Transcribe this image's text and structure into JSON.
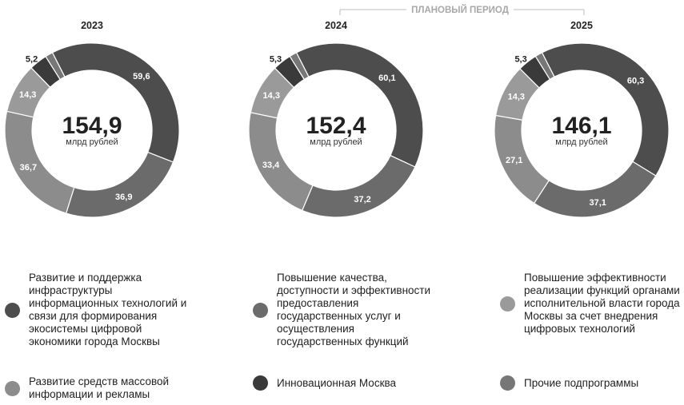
{
  "planned_period_label": "ПЛАНОВЫЙ ПЕРИОД",
  "chart_data": [
    {
      "type": "pie",
      "title": "2023",
      "total": "154,9",
      "unit": "млрд рублей",
      "slices": [
        {
          "value": 59.6,
          "label": "59,6",
          "color": "#4d4d4d"
        },
        {
          "value": 36.9,
          "label": "36,9",
          "color": "#6b6b6b"
        },
        {
          "value": 36.7,
          "label": "36,7",
          "color": "#8c8c8c"
        },
        {
          "value": 14.3,
          "label": "14,3",
          "color": "#9a9a9a"
        },
        {
          "value": 5.2,
          "label": "5,2",
          "color": "#3a3a3a"
        },
        {
          "value": 2.2,
          "label": "",
          "color": "#777777"
        }
      ]
    },
    {
      "type": "pie",
      "title": "2024",
      "total": "152,4",
      "unit": "млрд рублей",
      "slices": [
        {
          "value": 60.1,
          "label": "60,1",
          "color": "#4d4d4d"
        },
        {
          "value": 37.2,
          "label": "37,2",
          "color": "#6b6b6b"
        },
        {
          "value": 33.4,
          "label": "33,4",
          "color": "#8c8c8c"
        },
        {
          "value": 14.3,
          "label": "14,3",
          "color": "#9a9a9a"
        },
        {
          "value": 5.3,
          "label": "5,3",
          "color": "#3a3a3a"
        },
        {
          "value": 2.1,
          "label": "",
          "color": "#777777"
        }
      ]
    },
    {
      "type": "pie",
      "title": "2025",
      "total": "146,1",
      "unit": "млрд рублей",
      "slices": [
        {
          "value": 60.3,
          "label": "60,3",
          "color": "#4d4d4d"
        },
        {
          "value": 37.1,
          "label": "37,1",
          "color": "#6b6b6b"
        },
        {
          "value": 27.1,
          "label": "27,1",
          "color": "#8c8c8c"
        },
        {
          "value": 14.3,
          "label": "14,3",
          "color": "#9a9a9a"
        },
        {
          "value": 5.3,
          "label": "5,3",
          "color": "#3a3a3a"
        },
        {
          "value": 2.0,
          "label": "",
          "color": "#777777"
        }
      ]
    }
  ],
  "legend": [
    {
      "label": "Развитие и поддержка инфраструктуры информационных технологий и связи для формирования экосистемы цифровой экономики города Москвы",
      "color": "#4d4d4d"
    },
    {
      "label": "Повышение качества, доступности и эффективности предоставления государственных услуг и осуществления государственных функций",
      "color": "#6b6b6b"
    },
    {
      "label": "Повышение эффективности реализации функций органами исполнительной власти города Москвы за счет внедрения цифровых технологий",
      "color": "#9a9a9a"
    },
    {
      "label": "Развитие средств массовой информации и рекламы",
      "color": "#8c8c8c"
    },
    {
      "label": "Инновационная Москва",
      "color": "#3a3a3a"
    },
    {
      "label": "Прочие подпрограммы",
      "color": "#777777"
    }
  ]
}
